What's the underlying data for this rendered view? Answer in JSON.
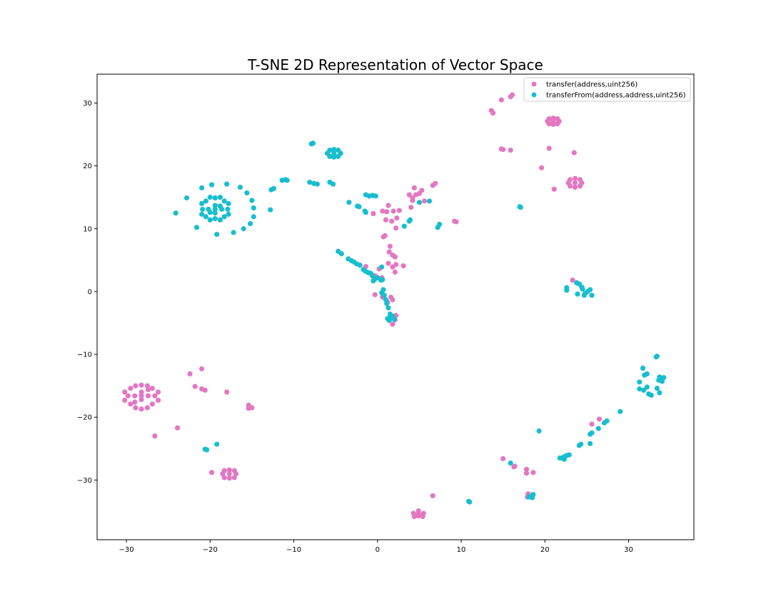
{
  "chart_data": {
    "type": "scatter",
    "title": "T-SNE 2D Representation of Vector Space",
    "xlabel": "",
    "ylabel": "",
    "xlim": [
      -33.5,
      37.8
    ],
    "ylim": [
      -39.5,
      34.6
    ],
    "xticks": [
      -30,
      -20,
      -10,
      0,
      10,
      20,
      30
    ],
    "yticks": [
      -30,
      -20,
      -10,
      0,
      10,
      20,
      30
    ],
    "grid": false,
    "legend_position": "top-right",
    "series": [
      {
        "name": "transfer(address,uint256)",
        "color": "#e377c2",
        "points": [
          [
            -28.2,
            -16.6
          ],
          [
            -29.8,
            -16.6
          ],
          [
            -26.6,
            -16.6
          ],
          [
            -28.2,
            -14.9
          ],
          [
            -28.2,
            -18.7
          ],
          [
            -29.5,
            -15.4
          ],
          [
            -26.9,
            -15.4
          ],
          [
            -29.5,
            -17.9
          ],
          [
            -26.9,
            -17.9
          ],
          [
            -28.9,
            -15.0
          ],
          [
            -27.5,
            -15.0
          ],
          [
            -28.9,
            -18.5
          ],
          [
            -27.5,
            -18.5
          ],
          [
            -30.2,
            -16.0
          ],
          [
            -26.2,
            -16.0
          ],
          [
            -30.2,
            -17.3
          ],
          [
            -26.2,
            -17.3
          ],
          [
            -28.2,
            -16.0
          ],
          [
            -28.2,
            -17.2
          ],
          [
            -29.0,
            -16.6
          ],
          [
            -27.4,
            -16.6
          ],
          [
            -29.0,
            -17.6
          ],
          [
            -27.4,
            -15.6
          ],
          [
            -22.4,
            -13.1
          ],
          [
            -21.0,
            -12.3
          ],
          [
            -21.8,
            -15.1
          ],
          [
            -21.0,
            -15.5
          ],
          [
            -20.6,
            -15.7
          ],
          [
            -18.0,
            -16.0
          ],
          [
            -15.4,
            -18.1
          ],
          [
            -15.4,
            -18.6
          ],
          [
            -15.0,
            -18.5
          ],
          [
            -23.9,
            -21.7
          ],
          [
            -26.6,
            -23.0
          ],
          [
            -17.7,
            -29.0
          ],
          [
            -18.5,
            -29.0
          ],
          [
            -16.9,
            -29.0
          ],
          [
            -17.7,
            -28.4
          ],
          [
            -17.7,
            -29.7
          ],
          [
            -18.3,
            -28.5
          ],
          [
            -17.1,
            -28.5
          ],
          [
            -18.3,
            -29.6
          ],
          [
            -17.1,
            -29.6
          ],
          [
            -19.8,
            -28.8
          ],
          [
            4.9,
            -35.3
          ],
          [
            4.3,
            -35.3
          ],
          [
            5.5,
            -35.3
          ],
          [
            4.9,
            -35.7
          ],
          [
            4.9,
            -34.9
          ],
          [
            4.4,
            -35.8
          ],
          [
            5.4,
            -35.8
          ],
          [
            6.6,
            -32.5
          ],
          [
            21.0,
            27.1
          ],
          [
            20.3,
            27.1
          ],
          [
            21.7,
            27.1
          ],
          [
            21.0,
            26.6
          ],
          [
            21.0,
            27.6
          ],
          [
            20.5,
            26.7
          ],
          [
            21.5,
            26.7
          ],
          [
            20.5,
            27.5
          ],
          [
            21.5,
            27.5
          ],
          [
            23.6,
            17.3
          ],
          [
            22.8,
            17.3
          ],
          [
            24.4,
            17.3
          ],
          [
            23.6,
            16.6
          ],
          [
            23.6,
            18.0
          ],
          [
            23.0,
            16.8
          ],
          [
            24.2,
            16.8
          ],
          [
            23.0,
            17.8
          ],
          [
            24.2,
            17.8
          ],
          [
            15.9,
            31.0
          ],
          [
            16.1,
            31.3
          ],
          [
            14.8,
            30.5
          ],
          [
            13.6,
            28.8
          ],
          [
            13.8,
            28.4
          ],
          [
            14.8,
            22.7
          ],
          [
            15.0,
            22.6
          ],
          [
            15.9,
            22.5
          ],
          [
            20.5,
            22.8
          ],
          [
            23.5,
            22.1
          ],
          [
            19.6,
            19.7
          ],
          [
            21.1,
            16.3
          ],
          [
            4.4,
            16.5
          ],
          [
            4.6,
            15.4
          ],
          [
            5.0,
            15.6
          ],
          [
            5.3,
            16.1
          ],
          [
            5.6,
            14.4
          ],
          [
            3.8,
            15.4
          ],
          [
            4.2,
            14.9
          ],
          [
            6.6,
            16.9
          ],
          [
            6.9,
            17.2
          ],
          [
            4.2,
            14.5
          ],
          [
            4.0,
            13.4
          ],
          [
            1.3,
            13.7
          ],
          [
            1.1,
            12.7
          ],
          [
            1.9,
            12.8
          ],
          [
            2.6,
            12.9
          ],
          [
            1.7,
            11.2
          ],
          [
            2.3,
            11.7
          ],
          [
            2.2,
            10.1
          ],
          [
            1.0,
            11.4
          ],
          [
            0.6,
            12.8
          ],
          [
            -0.5,
            12.4
          ],
          [
            9.2,
            11.2
          ],
          [
            9.4,
            11.1
          ],
          [
            0.7,
            8.7
          ],
          [
            0.9,
            8.9
          ],
          [
            1.5,
            7.2
          ],
          [
            1.4,
            6.3
          ],
          [
            1.8,
            5.8
          ],
          [
            2.1,
            5.5
          ],
          [
            1.3,
            4.5
          ],
          [
            1.8,
            3.9
          ],
          [
            2.2,
            4.3
          ],
          [
            2.1,
            3.1
          ],
          [
            3.1,
            4.1
          ],
          [
            0.2,
            3.6
          ],
          [
            -1.4,
            4.0
          ],
          [
            -0.3,
            2.5
          ],
          [
            0.5,
            2.2
          ],
          [
            -0.3,
            -0.5
          ],
          [
            0.6,
            -0.9
          ],
          [
            1.2,
            -1.7
          ],
          [
            1.6,
            -0.9
          ],
          [
            1.8,
            -1.3
          ],
          [
            2.2,
            -3.8
          ],
          [
            2.1,
            -4.5
          ],
          [
            1.8,
            -5.2
          ],
          [
            23.3,
            1.8
          ],
          [
            25.6,
            -21.1
          ],
          [
            26.5,
            -20.3
          ],
          [
            15.0,
            -26.6
          ],
          [
            16.4,
            -27.8
          ],
          [
            16.3,
            -27.9
          ],
          [
            17.8,
            -28.3
          ],
          [
            17.8,
            -28.9
          ],
          [
            18.6,
            -28.8
          ],
          [
            18.0,
            -32.2
          ],
          [
            17.9,
            -32.7
          ]
        ]
      },
      {
        "name": "transferFrom(address,address,uint256)",
        "color": "#17becf",
        "points": [
          [
            -19.4,
            13.1
          ],
          [
            -20.9,
            13.1
          ],
          [
            -17.9,
            13.1
          ],
          [
            -19.4,
            11.6
          ],
          [
            -19.4,
            14.9
          ],
          [
            -20.5,
            11.9
          ],
          [
            -18.3,
            11.9
          ],
          [
            -20.5,
            14.4
          ],
          [
            -18.3,
            14.4
          ],
          [
            -21.0,
            12.3
          ],
          [
            -17.8,
            12.3
          ],
          [
            -21.0,
            14.0
          ],
          [
            -17.8,
            14.0
          ],
          [
            -20.0,
            11.4
          ],
          [
            -18.8,
            11.4
          ],
          [
            -20.0,
            15.0
          ],
          [
            -18.8,
            15.0
          ],
          [
            -19.4,
            12.5
          ],
          [
            -19.4,
            13.7
          ],
          [
            -20.2,
            13.1
          ],
          [
            -18.6,
            13.1
          ],
          [
            -20.0,
            12.6
          ],
          [
            -18.8,
            13.6
          ],
          [
            -24.1,
            12.5
          ],
          [
            -22.8,
            14.9
          ],
          [
            -21.6,
            10.2
          ],
          [
            -21.0,
            16.5
          ],
          [
            -19.8,
            17.0
          ],
          [
            -19.2,
            9.1
          ],
          [
            -18.0,
            17.1
          ],
          [
            -17.2,
            9.4
          ],
          [
            -16.4,
            16.6
          ],
          [
            -16.0,
            10.0
          ],
          [
            -15.6,
            15.7
          ],
          [
            -15.2,
            10.8
          ],
          [
            -15.0,
            14.5
          ],
          [
            -14.8,
            11.9
          ],
          [
            -14.8,
            13.3
          ],
          [
            -12.8,
            13.0
          ],
          [
            -12.7,
            16.2
          ],
          [
            -12.4,
            16.4
          ],
          [
            -11.4,
            17.7
          ],
          [
            -11.0,
            17.8
          ],
          [
            -10.8,
            17.7
          ],
          [
            -8.1,
            17.4
          ],
          [
            -7.6,
            17.2
          ],
          [
            -7.2,
            17.1
          ],
          [
            -7.9,
            23.5
          ],
          [
            -7.7,
            23.6
          ],
          [
            -5.2,
            22.0
          ],
          [
            -6.0,
            22.0
          ],
          [
            -4.4,
            22.0
          ],
          [
            -5.2,
            21.4
          ],
          [
            -5.2,
            22.6
          ],
          [
            -5.7,
            21.5
          ],
          [
            -4.7,
            21.5
          ],
          [
            -5.7,
            22.5
          ],
          [
            -4.7,
            22.5
          ],
          [
            -5.7,
            17.4
          ],
          [
            -5.3,
            17.1
          ],
          [
            -3.4,
            14.2
          ],
          [
            -2.4,
            13.6
          ],
          [
            -2.2,
            13.5
          ],
          [
            -1.5,
            12.8
          ],
          [
            -1.4,
            12.6
          ],
          [
            -1.4,
            15.4
          ],
          [
            -1.0,
            15.2
          ],
          [
            -0.6,
            15.3
          ],
          [
            -0.2,
            15.2
          ],
          [
            3.2,
            10.4
          ],
          [
            3.8,
            11.2
          ],
          [
            3.9,
            11.4
          ],
          [
            5.0,
            14.2
          ],
          [
            6.2,
            14.4
          ],
          [
            7.2,
            10.2
          ],
          [
            7.4,
            10.7
          ],
          [
            17.0,
            13.5
          ],
          [
            17.1,
            13.4
          ],
          [
            -4.7,
            6.4
          ],
          [
            -4.3,
            6.0
          ],
          [
            -3.5,
            5.2
          ],
          [
            -3.1,
            4.9
          ],
          [
            -2.8,
            4.7
          ],
          [
            -2.5,
            4.4
          ],
          [
            -2.1,
            4.2
          ],
          [
            -1.7,
            3.5
          ],
          [
            -1.4,
            3.2
          ],
          [
            -1.1,
            3.0
          ],
          [
            -0.8,
            2.9
          ],
          [
            -0.6,
            2.5
          ],
          [
            -0.3,
            2.0
          ],
          [
            0.0,
            2.2
          ],
          [
            0.4,
            1.8
          ],
          [
            0.6,
            1.9
          ],
          [
            -0.5,
            1.7
          ],
          [
            0.5,
            3.9
          ],
          [
            0.7,
            0.3
          ],
          [
            0.5,
            -0.2
          ],
          [
            0.8,
            -0.6
          ],
          [
            1.0,
            -1.3
          ],
          [
            1.1,
            -1.9
          ],
          [
            1.3,
            -2.6
          ],
          [
            1.5,
            -3.6
          ],
          [
            1.6,
            -4.1
          ],
          [
            1.8,
            -3.9
          ],
          [
            1.4,
            -4.6
          ],
          [
            1.2,
            -4.3
          ],
          [
            2.0,
            -4.4
          ],
          [
            22.6,
            0.6
          ],
          [
            22.6,
            0.2
          ],
          [
            23.8,
            1.4
          ],
          [
            24.1,
            1.2
          ],
          [
            23.9,
            -0.4
          ],
          [
            24.5,
            0.4
          ],
          [
            24.8,
            -0.3
          ],
          [
            25.1,
            0.0
          ],
          [
            25.4,
            0.3
          ],
          [
            25.6,
            -0.6
          ],
          [
            24.7,
            -0.6
          ],
          [
            24.4,
            0.7
          ],
          [
            33.3,
            -10.4
          ],
          [
            33.4,
            -10.3
          ],
          [
            31.7,
            -12.2
          ],
          [
            31.9,
            -13.3
          ],
          [
            32.2,
            -13.1
          ],
          [
            31.3,
            -14.4
          ],
          [
            31.3,
            -15.5
          ],
          [
            31.8,
            -15.7
          ],
          [
            32.2,
            -15.2
          ],
          [
            32.4,
            -16.3
          ],
          [
            32.7,
            -16.5
          ],
          [
            33.4,
            -15.4
          ],
          [
            33.7,
            -16.1
          ],
          [
            33.7,
            -13.6
          ],
          [
            34.0,
            -13.9
          ],
          [
            34.2,
            -13.7
          ],
          [
            34.0,
            -14.3
          ],
          [
            33.6,
            -14.1
          ],
          [
            29.0,
            -19.1
          ],
          [
            27.4,
            -20.6
          ],
          [
            27.1,
            -20.9
          ],
          [
            26.4,
            -21.8
          ],
          [
            25.6,
            -22.5
          ],
          [
            25.4,
            -22.7
          ],
          [
            25.4,
            -24.2
          ],
          [
            24.3,
            -24.3
          ],
          [
            24.1,
            -24.5
          ],
          [
            22.9,
            -26.0
          ],
          [
            22.6,
            -26.1
          ],
          [
            22.3,
            -26.3
          ],
          [
            21.8,
            -26.5
          ],
          [
            22.1,
            -26.5
          ],
          [
            22.3,
            -26.7
          ],
          [
            19.3,
            -22.2
          ],
          [
            15.9,
            -27.3
          ],
          [
            18.1,
            -32.7
          ],
          [
            18.5,
            -32.8
          ],
          [
            18.6,
            -32.3
          ],
          [
            18.5,
            -32.5
          ],
          [
            10.9,
            -33.4
          ],
          [
            11.0,
            -33.5
          ],
          [
            -20.6,
            -25.1
          ],
          [
            -20.4,
            -25.2
          ],
          [
            -19.2,
            -24.3
          ]
        ]
      }
    ]
  }
}
